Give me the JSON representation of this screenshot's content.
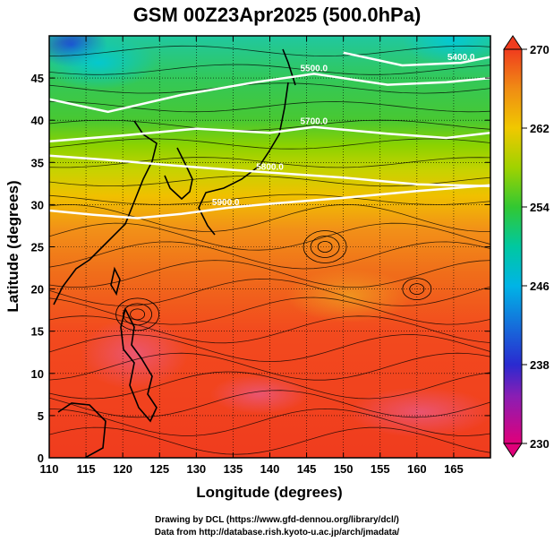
{
  "title": "GSM 00Z23Apr2025 (500.0hPa)",
  "xlabel": "Longitude (degrees)",
  "ylabel": "Latitude  (degrees)",
  "credits": [
    "Drawing by DCL (https://www.gfd-dennou.org/library/dcl/)",
    "Data from http://database.rish.kyoto-u.ac.jp/arch/jmadata/"
  ],
  "chart_data": {
    "type": "heatmap",
    "x_ticks": [
      "110",
      "115",
      "120",
      "125",
      "130",
      "135",
      "140",
      "145",
      "150",
      "155",
      "160",
      "165"
    ],
    "y_ticks": [
      "0",
      "5",
      "10",
      "15",
      "20",
      "25",
      "30",
      "35",
      "40",
      "45"
    ],
    "xlim": [
      110,
      170
    ],
    "ylim": [
      0,
      50
    ],
    "colorbar": {
      "ticks": [
        "230",
        "238",
        "246",
        "254",
        "262",
        "270"
      ],
      "range": [
        230,
        270
      ],
      "colors": [
        "#e0007a",
        "#2a2ad0",
        "#00b4e6",
        "#32c832",
        "#f0c800",
        "#f03c1e"
      ]
    },
    "contour_labels": [
      "5500.0",
      "5400.0",
      "5700.0",
      "5800.0",
      "5900.0"
    ],
    "contours": [
      {
        "label": "5500.0",
        "points": [
          [
            110,
            42.5
          ],
          [
            118,
            41
          ],
          [
            128,
            43
          ],
          [
            138,
            44.5
          ],
          [
            146,
            45.5
          ],
          [
            156,
            44.2
          ],
          [
            164,
            44.5
          ],
          [
            170,
            45
          ]
        ]
      },
      {
        "label": "5400.0",
        "points": [
          [
            150,
            48
          ],
          [
            158,
            46.5
          ],
          [
            166,
            46.8
          ],
          [
            170,
            47.5
          ]
        ]
      },
      {
        "label": "5700.0",
        "points": [
          [
            110,
            37.5
          ],
          [
            120,
            38.2
          ],
          [
            130,
            39
          ],
          [
            140,
            38.5
          ],
          [
            146,
            39.2
          ],
          [
            156,
            38.4
          ],
          [
            164,
            37.9
          ],
          [
            170,
            38.5
          ]
        ]
      },
      {
        "label": "5800.0",
        "points": [
          [
            110,
            35.8
          ],
          [
            118,
            35.3
          ],
          [
            126,
            34.7
          ],
          [
            132,
            34.3
          ],
          [
            140,
            33.8
          ],
          [
            150,
            33.2
          ],
          [
            160,
            32.4
          ],
          [
            170,
            32.2
          ]
        ]
      },
      {
        "label": "5900.0",
        "points": [
          [
            110,
            29.3
          ],
          [
            116,
            28.8
          ],
          [
            122,
            28.4
          ],
          [
            128,
            28.9
          ],
          [
            134,
            29.6
          ],
          [
            140,
            30.1
          ],
          [
            150,
            30.8
          ],
          [
            160,
            31.6
          ],
          [
            170,
            32.3
          ]
        ]
      }
    ]
  }
}
